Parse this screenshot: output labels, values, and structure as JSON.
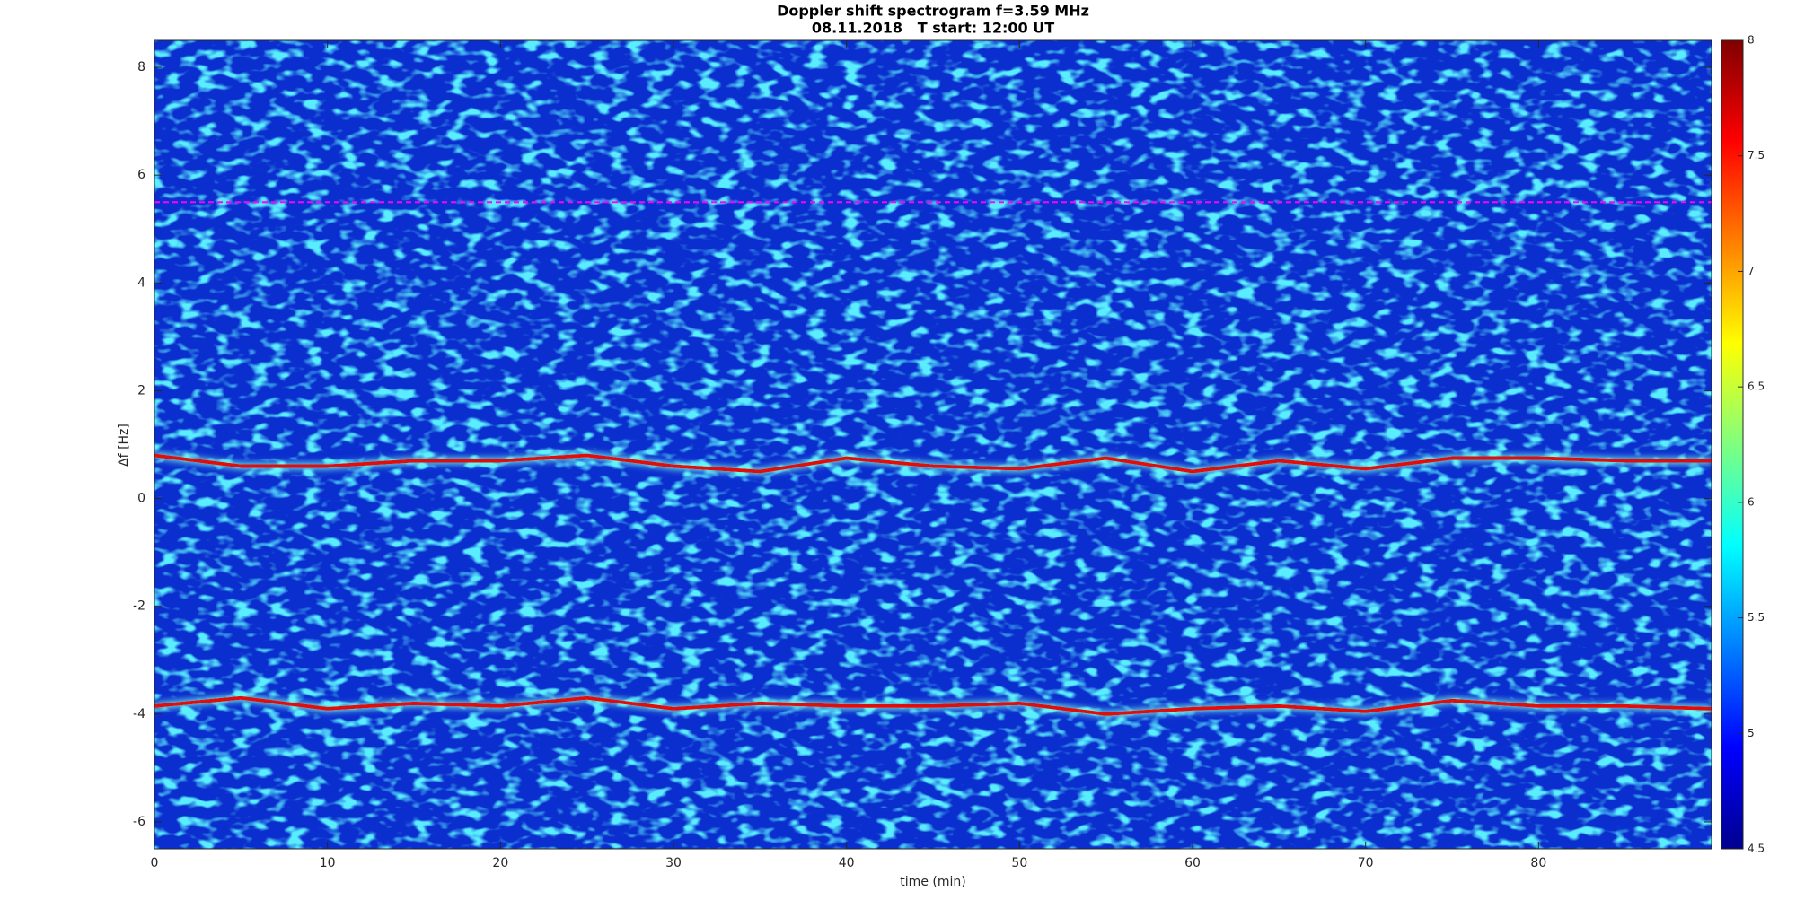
{
  "chart_data": {
    "type": "spectrogram",
    "title": "Doppler shift spectrogram f=3.59 MHz",
    "subtitle": "08.11.2018   T start: 12:00 UT",
    "x_label": "time (min)",
    "y_label": "Δf [Hz]",
    "x": [
      0,
      5,
      10,
      15,
      20,
      25,
      30,
      35,
      40,
      45,
      50,
      55,
      60,
      65,
      70,
      75,
      80,
      85,
      90
    ],
    "series": [
      {
        "color": "#ff00ff",
        "values": [
          5.5,
          5.5,
          5.5,
          5.5,
          5.5,
          5.5,
          5.5,
          5.5,
          5.5,
          5.5,
          5.5,
          5.5,
          5.5,
          5.5,
          5.5,
          5.5,
          5.5,
          5.5,
          5.5
        ]
      },
      {
        "color": "#e01010",
        "values": [
          0.8,
          0.6,
          0.6,
          0.7,
          0.7,
          0.8,
          0.6,
          0.5,
          0.75,
          0.6,
          0.55,
          0.75,
          0.5,
          0.7,
          0.55,
          0.75,
          0.75,
          0.7,
          0.7
        ]
      },
      {
        "color": "#e01010",
        "values": [
          -3.85,
          -3.7,
          -3.9,
          -3.8,
          -3.85,
          -3.7,
          -3.9,
          -3.8,
          -3.85,
          -3.85,
          -3.8,
          -4.0,
          -3.9,
          -3.85,
          -3.95,
          -3.75,
          -3.85,
          -3.85,
          -3.9
        ]
      }
    ],
    "xlim": [
      0,
      90
    ],
    "xticks": [
      0,
      10,
      20,
      30,
      40,
      50,
      60,
      70,
      80
    ],
    "ylim": [
      -6.5,
      8.5
    ],
    "yticks": [
      -6,
      -4,
      -2,
      0,
      2,
      4,
      6,
      8
    ],
    "colorbar": {
      "colormap": "jet",
      "clim": [
        4.5,
        8
      ],
      "ticks": [
        4.5,
        5,
        5.5,
        6,
        6.5,
        7,
        7.5,
        8
      ]
    }
  }
}
